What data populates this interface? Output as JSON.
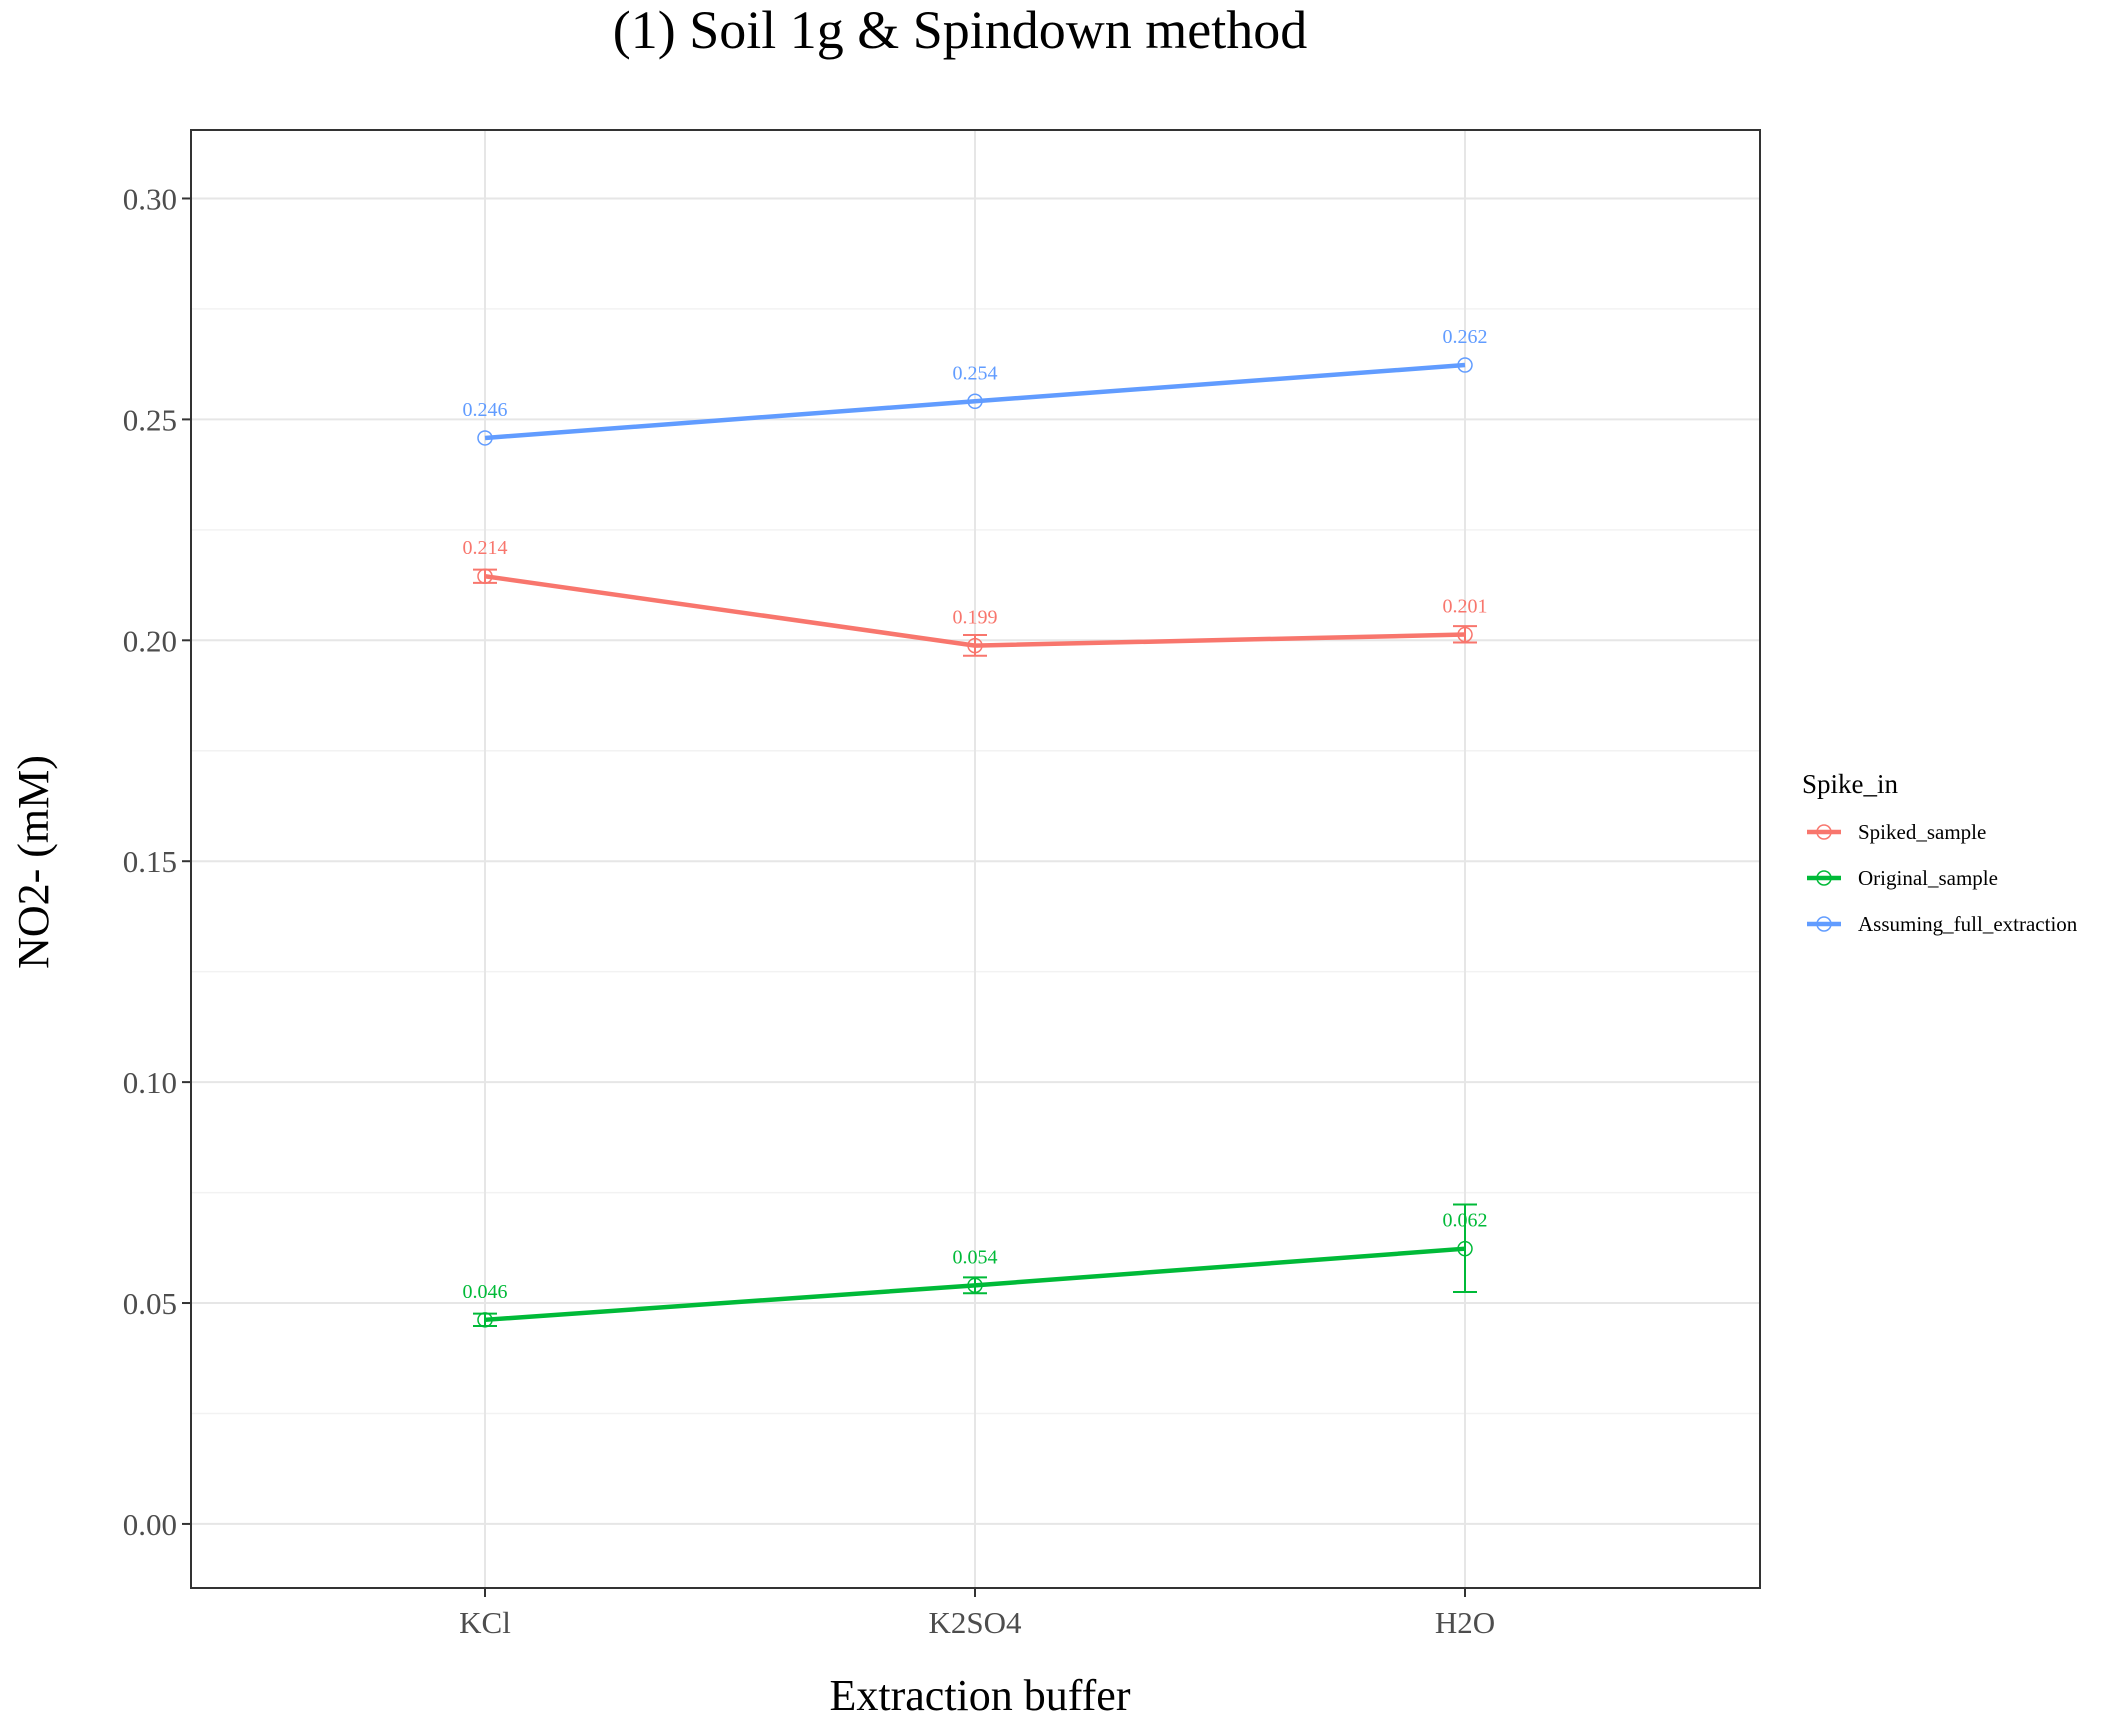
{
  "chart_data": {
    "type": "line",
    "title": "(1) Soil 1g & Spindown method",
    "xlabel": "Extraction buffer",
    "ylabel": "NO2- (mM)",
    "categories": [
      "KCl",
      "K2SO4",
      "H2O"
    ],
    "ylim": [
      -0.0145,
      0.3155
    ],
    "yticks": [
      0.0,
      0.05,
      0.1,
      0.15,
      0.2,
      0.25,
      0.3
    ],
    "ytick_labels": [
      "0.00",
      "0.05",
      "0.10",
      "0.15",
      "0.20",
      "0.25",
      "0.30"
    ],
    "grid": true,
    "legend": {
      "title": "Spike_in",
      "placement": "right"
    },
    "series": [
      {
        "name": "Spiked_sample",
        "color": "#F8766D",
        "values": [
          0.2145,
          0.1988,
          0.2013
        ],
        "labels": [
          "0.214",
          "0.199",
          "0.201"
        ],
        "error_low": [
          0.213,
          0.1965,
          0.1995
        ],
        "error_high": [
          0.216,
          0.2012,
          0.2032
        ]
      },
      {
        "name": "Original_sample",
        "color": "#00BA38",
        "values": [
          0.0462,
          0.054,
          0.0623
        ],
        "labels": [
          "0.046",
          "0.054",
          "0.062"
        ],
        "error_low": [
          0.0448,
          0.0522,
          0.0525
        ],
        "error_high": [
          0.0476,
          0.0558,
          0.0723
        ]
      },
      {
        "name": "Assuming_full_extraction",
        "color": "#619CFF",
        "values": [
          0.2458,
          0.2541,
          0.2623
        ],
        "labels": [
          "0.246",
          "0.254",
          "0.262"
        ],
        "error_low": [
          0.2458,
          0.2541,
          0.2623
        ],
        "error_high": [
          0.2458,
          0.2541,
          0.2623
        ]
      }
    ]
  }
}
